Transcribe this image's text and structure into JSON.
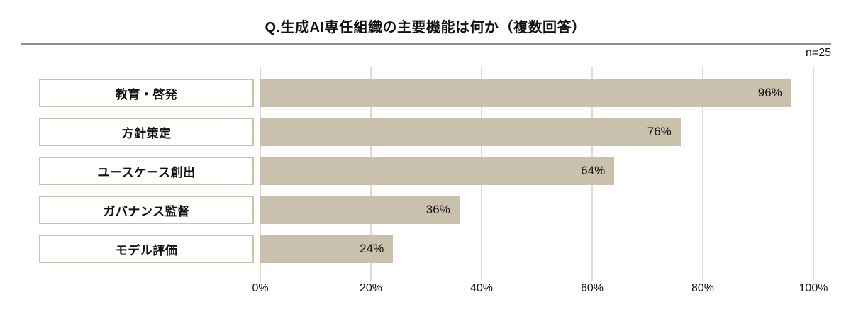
{
  "header": {
    "title": "Q.生成AI専任組織の主要機能は何か（複数回答）",
    "sample_size": "n=25"
  },
  "chart_data": {
    "type": "bar",
    "orientation": "horizontal",
    "title": "Q.生成AI専任組織の主要機能は何か（複数回答）",
    "sample_size_note": "n=25",
    "categories": [
      "教育・啓発",
      "方針策定",
      "ユースケース創出",
      "ガバナンス監督",
      "モデル評価"
    ],
    "values": [
      96,
      76,
      64,
      36,
      24
    ],
    "value_labels": [
      "96%",
      "76%",
      "64%",
      "36%",
      "24%"
    ],
    "xlabel": "",
    "ylabel": "",
    "xlim": [
      0,
      100
    ],
    "x_ticks": [
      "0%",
      "20%",
      "40%",
      "60%",
      "80%",
      "100%"
    ],
    "x_tick_values": [
      0,
      20,
      40,
      60,
      80,
      100
    ],
    "grid": true,
    "legend": false,
    "value_label_position": "inside-end"
  },
  "colors": {
    "bar": "#c9c0ad",
    "gridline": "#dfdacc",
    "label_box_border": "#cbc2b0",
    "divider": "#98907e",
    "text": "#111111",
    "background": "#ffffff"
  }
}
